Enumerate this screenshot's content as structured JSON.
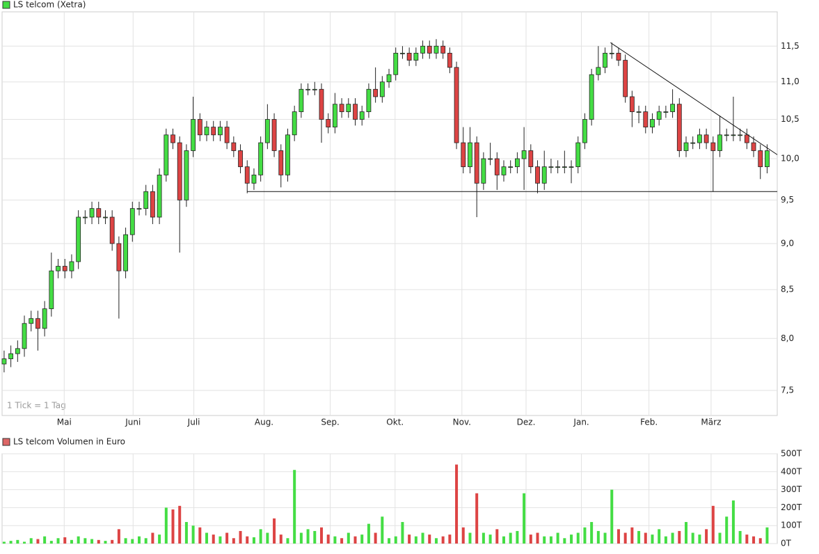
{
  "chart_data": [
    {
      "type": "candlestick",
      "title": "LS telcom (Xetra)",
      "note": "1 Tick = 1 Tag",
      "open": [
        7.75,
        7.8,
        7.85,
        7.9,
        8.15,
        8.2,
        8.1,
        8.3,
        8.7,
        8.75,
        8.7,
        8.8,
        9.3,
        9.3,
        9.4,
        9.3,
        9.3,
        9.0,
        8.7,
        9.1,
        9.4,
        9.4,
        9.6,
        9.3,
        9.8,
        10.3,
        10.2,
        9.5,
        10.1,
        10.5,
        10.3,
        10.4,
        10.3,
        10.4,
        10.2,
        10.1,
        9.9,
        9.7,
        9.8,
        10.2,
        10.5,
        10.1,
        9.8,
        10.3,
        10.6,
        10.9,
        10.9,
        10.9,
        10.5,
        10.4,
        10.7,
        10.6,
        10.7,
        10.5,
        10.6,
        10.9,
        10.8,
        11.0,
        11.1,
        11.4,
        11.4,
        11.3,
        11.4,
        11.5,
        11.4,
        11.5,
        11.4,
        11.2,
        10.2,
        9.9,
        10.2,
        9.7,
        10.0,
        10.0,
        9.8,
        9.9,
        9.9,
        10.0,
        10.1,
        9.9,
        9.7,
        9.9,
        9.9,
        9.9,
        9.9,
        9.9,
        10.2,
        10.5,
        11.1,
        11.2,
        11.4,
        11.4,
        11.3,
        10.8,
        10.6,
        10.6,
        10.4,
        10.5,
        10.6,
        10.6,
        10.7,
        10.1,
        10.2,
        10.2,
        10.3,
        10.2,
        10.1,
        10.3,
        10.3,
        10.3,
        10.3,
        10.2,
        10.1,
        9.9
      ],
      "high": [
        7.88,
        7.93,
        7.98,
        8.23,
        8.28,
        8.28,
        8.38,
        8.9,
        8.83,
        8.83,
        8.88,
        9.38,
        9.38,
        9.48,
        9.48,
        9.38,
        9.38,
        9.08,
        9.18,
        9.48,
        9.48,
        9.68,
        9.68,
        9.88,
        10.38,
        10.38,
        10.28,
        10.18,
        10.8,
        10.58,
        10.48,
        10.48,
        10.48,
        10.48,
        10.28,
        10.18,
        9.98,
        9.88,
        10.28,
        10.7,
        10.58,
        10.18,
        10.38,
        10.68,
        10.98,
        10.98,
        11.0,
        10.98,
        10.58,
        10.85,
        10.78,
        10.78,
        10.78,
        10.68,
        10.98,
        11.2,
        11.08,
        11.18,
        11.48,
        11.5,
        11.48,
        11.48,
        11.58,
        11.58,
        11.6,
        11.58,
        11.48,
        11.28,
        10.4,
        10.4,
        10.28,
        10.08,
        10.2,
        10.08,
        9.98,
        9.98,
        10.08,
        10.4,
        10.18,
        9.98,
        10.1,
        10.0,
        9.98,
        10.1,
        9.98,
        10.28,
        10.58,
        11.18,
        11.5,
        11.48,
        11.55,
        11.48,
        11.38,
        10.88,
        10.68,
        10.68,
        10.58,
        10.68,
        10.68,
        10.9,
        10.78,
        10.28,
        10.28,
        10.38,
        10.38,
        10.28,
        10.55,
        10.38,
        10.8,
        10.38,
        10.38,
        10.28,
        10.18,
        10.18
      ],
      "low": [
        7.67,
        7.72,
        7.77,
        7.82,
        8.07,
        7.88,
        8.02,
        8.22,
        8.62,
        8.62,
        8.62,
        8.72,
        9.22,
        9.22,
        9.22,
        9.22,
        8.92,
        8.2,
        8.62,
        9.02,
        9.32,
        9.32,
        9.22,
        9.22,
        9.72,
        10.12,
        8.9,
        9.42,
        10.02,
        10.22,
        10.22,
        10.22,
        10.22,
        10.12,
        10.02,
        9.82,
        9.58,
        9.62,
        9.72,
        10.12,
        10.02,
        9.65,
        9.72,
        10.22,
        10.52,
        10.82,
        10.82,
        10.2,
        10.32,
        10.32,
        10.52,
        10.52,
        10.42,
        10.42,
        10.52,
        10.72,
        10.72,
        10.92,
        11.02,
        11.32,
        11.22,
        11.22,
        11.32,
        11.32,
        11.32,
        11.32,
        11.12,
        10.12,
        9.82,
        9.82,
        9.3,
        9.62,
        9.92,
        9.62,
        9.72,
        9.82,
        9.82,
        9.62,
        9.82,
        9.58,
        9.62,
        9.82,
        9.82,
        9.82,
        9.7,
        9.82,
        10.12,
        10.42,
        11.02,
        11.12,
        11.32,
        11.22,
        10.72,
        10.4,
        10.45,
        10.32,
        10.32,
        10.42,
        10.52,
        10.52,
        10.02,
        10.02,
        10.12,
        10.12,
        10.12,
        9.6,
        10.02,
        10.22,
        10.22,
        10.22,
        10.12,
        10.02,
        9.75,
        9.82
      ],
      "close": [
        7.8,
        7.85,
        7.9,
        8.15,
        8.2,
        8.1,
        8.3,
        8.7,
        8.75,
        8.7,
        8.8,
        9.3,
        9.3,
        9.4,
        9.3,
        9.3,
        9.0,
        8.7,
        9.1,
        9.4,
        9.4,
        9.6,
        9.3,
        9.8,
        10.3,
        10.2,
        9.5,
        10.1,
        10.5,
        10.3,
        10.4,
        10.3,
        10.4,
        10.2,
        10.1,
        9.9,
        9.7,
        9.8,
        10.2,
        10.5,
        10.1,
        9.8,
        10.3,
        10.6,
        10.9,
        10.9,
        10.9,
        10.5,
        10.4,
        10.7,
        10.6,
        10.7,
        10.5,
        10.6,
        10.9,
        10.8,
        11.0,
        11.1,
        11.4,
        11.4,
        11.3,
        11.4,
        11.5,
        11.4,
        11.5,
        11.4,
        11.2,
        10.2,
        9.9,
        10.2,
        9.7,
        10.0,
        10.0,
        9.8,
        9.9,
        9.9,
        10.0,
        10.1,
        9.9,
        9.7,
        9.9,
        9.9,
        9.9,
        9.9,
        9.9,
        10.2,
        10.5,
        11.1,
        11.2,
        11.4,
        11.4,
        11.3,
        10.8,
        10.6,
        10.6,
        10.4,
        10.5,
        10.6,
        10.6,
        10.7,
        10.1,
        10.2,
        10.2,
        10.3,
        10.2,
        10.1,
        10.3,
        10.3,
        10.3,
        10.3,
        10.2,
        10.1,
        9.9,
        10.1
      ],
      "up_color": "#44dd44",
      "down_color": "#dd4444",
      "xlim": [
        -0.3,
        114.5
      ],
      "xticks": [
        {
          "value": 8.9,
          "label": "Mai"
        },
        {
          "value": 19.1,
          "label": "Juni"
        },
        {
          "value": 28.1,
          "label": "Juli"
        },
        {
          "value": 38.5,
          "label": "Aug."
        },
        {
          "value": 48.3,
          "label": "Sep."
        },
        {
          "value": 57.9,
          "label": "Okt."
        },
        {
          "value": 67.8,
          "label": "Nov."
        },
        {
          "value": 77.3,
          "label": "Dez."
        },
        {
          "value": 85.5,
          "label": "Jan."
        },
        {
          "value": 95.5,
          "label": "Feb."
        },
        {
          "value": 104.7,
          "label": "März"
        }
      ],
      "ylim": [
        7.27,
        12.0
      ],
      "log_scale": true,
      "grid": true,
      "yticks": [
        {
          "value": 7.5,
          "label": "7,5"
        },
        {
          "value": 8.0,
          "label": "8,0"
        },
        {
          "value": 8.5,
          "label": "8,5"
        },
        {
          "value": 9.0,
          "label": "9,0"
        },
        {
          "value": 9.5,
          "label": "9,5"
        },
        {
          "value": 10.0,
          "label": "10,0"
        },
        {
          "value": 10.5,
          "label": "10,5"
        },
        {
          "value": 11.0,
          "label": "11,0"
        },
        {
          "value": 11.5,
          "label": "11,5"
        }
      ],
      "lines": [
        {
          "x": [
            36,
            114.5
          ],
          "y": [
            9.6,
            9.6
          ]
        },
        {
          "x": [
            89.8,
            114.5
          ],
          "y": [
            11.55,
            10.05
          ]
        }
      ]
    },
    {
      "type": "bar",
      "title": "LS telcom Volumen in Euro",
      "title_color": "#dd6666",
      "values": [
        10,
        15,
        20,
        10,
        30,
        25,
        40,
        15,
        30,
        35,
        20,
        40,
        30,
        25,
        20,
        15,
        20,
        80,
        30,
        25,
        40,
        30,
        60,
        50,
        200,
        190,
        210,
        120,
        100,
        90,
        60,
        50,
        40,
        60,
        30,
        70,
        40,
        35,
        80,
        60,
        140,
        50,
        30,
        410,
        60,
        80,
        70,
        90,
        50,
        40,
        30,
        60,
        40,
        50,
        110,
        60,
        150,
        30,
        40,
        120,
        50,
        40,
        60,
        50,
        30,
        40,
        50,
        440,
        90,
        60,
        280,
        60,
        50,
        80,
        40,
        60,
        70,
        280,
        50,
        60,
        40,
        40,
        60,
        30,
        50,
        60,
        90,
        120,
        70,
        60,
        300,
        80,
        60,
        90,
        70,
        60,
        50,
        80,
        40,
        60,
        70,
        120,
        60,
        50,
        80,
        210,
        60,
        150,
        240,
        70,
        50,
        40,
        30,
        90
      ],
      "ylim": [
        0,
        500
      ],
      "grid": true,
      "yticks": [
        {
          "value": 0,
          "label": "0T"
        },
        {
          "value": 100,
          "label": "100T"
        },
        {
          "value": 200,
          "label": "200T"
        },
        {
          "value": 300,
          "label": "300T"
        },
        {
          "value": 400,
          "label": "400T"
        },
        {
          "value": 500,
          "label": "500T"
        }
      ]
    }
  ]
}
